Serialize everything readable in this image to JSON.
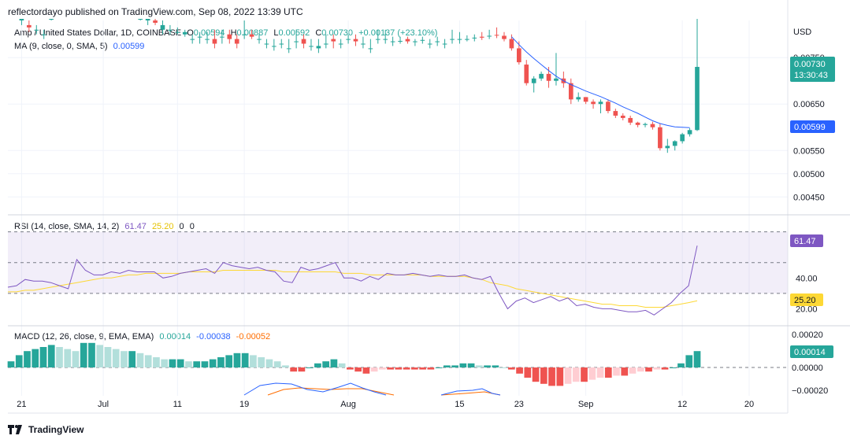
{
  "header": {
    "published_by": "reflectordayo published on TradingView.com, Sep 08, 2022 13:39 UTC"
  },
  "footer": {
    "brand": "TradingView"
  },
  "legend": {
    "symbol": "Amp / United States Dollar, 1D, COINBASE",
    "open_label": "O",
    "open": "0.00594",
    "high_label": "H",
    "high": "0.00887",
    "low_label": "L",
    "low": "0.00592",
    "close_label": "C",
    "close": "0.00730",
    "change": "+0.00137 (+23.10%)",
    "ma_label": "MA (9, close, 0, SMA, 5)",
    "ma_value": "0.00599",
    "rsi_label": "RSI (14, close, SMA, 14, 2)",
    "rsi_value": "61.47",
    "rsi_ma_value": "25.20",
    "rsi_extra1": "0",
    "rsi_extra2": "0",
    "macd_label": "MACD (12, 26, close, 9, EMA, EMA)",
    "macd_hist": "0.00014",
    "macd_line": "-0.00038",
    "macd_signal": "-0.00052"
  },
  "colors": {
    "up": "#26a69a",
    "down": "#ef5350",
    "ma": "#2962ff",
    "rsi": "#7e57c2",
    "rsi_ma": "#fdd835",
    "macd": "#2962ff",
    "signal": "#ff6d00",
    "hist_up": "#26a69a",
    "hist_up_light": "#b2dfdb",
    "hist_down": "#ef5350",
    "hist_down_light": "#ffcdd2"
  },
  "chart_data": [
    {
      "type": "candlestick",
      "currency": "USD",
      "y_ticks": [
        "0.00750",
        "0.00650",
        "0.00550",
        "0.00500",
        "0.00450"
      ],
      "price_badge": {
        "value": "0.00730",
        "countdown": "13:30:43"
      },
      "ma_badge": "0.00599",
      "x_ticks": [
        "21",
        "Jul",
        "11",
        "19",
        "Aug",
        "15",
        "23",
        "Sep",
        "12",
        "20"
      ],
      "candles": [
        [
          8.5,
          8.5,
          8.45,
          8.6
        ],
        [
          8.3,
          8.35,
          8.2,
          8.6
        ],
        [
          8.2,
          8.15,
          8.05,
          8.3
        ],
        [
          8.1,
          8.1,
          8.0,
          8.2
        ],
        [
          8.0,
          8.0,
          7.9,
          8.1
        ],
        [
          8.4,
          8.4,
          8.3,
          8.5
        ],
        [
          8.6,
          8.5,
          8.45,
          8.7
        ],
        [
          8.5,
          8.6,
          8.4,
          8.7
        ],
        [
          8.7,
          8.7,
          8.6,
          8.9
        ],
        [
          8.8,
          8.9,
          8.7,
          9.0
        ],
        [
          9.0,
          8.9,
          8.8,
          9.2
        ],
        [
          8.8,
          8.8,
          8.7,
          8.9
        ],
        [
          8.8,
          8.8,
          8.7,
          8.9
        ],
        [
          8.8,
          8.8,
          8.7,
          8.9
        ],
        [
          8.8,
          8.9,
          8.7,
          9.0
        ],
        [
          9.0,
          8.9,
          8.8,
          9.1
        ],
        [
          8.8,
          8.7,
          8.6,
          9.0
        ],
        [
          8.4,
          8.4,
          8.3,
          8.5
        ],
        [
          8.3,
          8.35,
          8.2,
          8.4
        ],
        [
          8.3,
          8.25,
          8.2,
          8.45
        ],
        [
          8.1,
          8.2,
          8.0,
          8.3
        ],
        [
          8.1,
          8.1,
          8.0,
          8.2
        ],
        [
          8.05,
          8.05,
          8.0,
          8.15
        ],
        [
          8.0,
          8.05,
          7.95,
          8.1
        ],
        [
          7.9,
          7.9,
          7.8,
          8.0
        ],
        [
          7.95,
          7.95,
          7.8,
          8.05
        ],
        [
          7.9,
          7.9,
          7.8,
          8.05
        ],
        [
          7.9,
          7.8,
          7.7,
          8.1
        ],
        [
          7.95,
          7.95,
          7.8,
          8.1
        ],
        [
          8.0,
          7.9,
          7.8,
          8.1
        ],
        [
          7.9,
          7.8,
          7.7,
          8.0
        ],
        [
          8.0,
          8.0,
          7.9,
          8.3
        ],
        [
          8.0,
          7.95,
          7.9,
          8.1
        ],
        [
          7.9,
          7.9,
          7.8,
          8.0
        ],
        [
          7.8,
          7.8,
          7.7,
          7.9
        ],
        [
          7.75,
          7.75,
          7.65,
          7.9
        ],
        [
          7.8,
          7.8,
          7.7,
          7.9
        ],
        [
          7.7,
          7.7,
          7.6,
          7.9
        ],
        [
          7.85,
          7.85,
          7.7,
          8.1
        ],
        [
          7.9,
          7.8,
          7.7,
          8.0
        ],
        [
          7.75,
          7.75,
          7.65,
          7.9
        ],
        [
          7.7,
          7.75,
          7.6,
          7.9
        ],
        [
          7.8,
          7.8,
          7.7,
          8.0
        ],
        [
          7.9,
          7.85,
          7.7,
          8.0
        ],
        [
          7.8,
          7.8,
          7.7,
          7.9
        ],
        [
          7.9,
          7.9,
          7.8,
          8.0
        ],
        [
          7.9,
          7.85,
          7.75,
          8.0
        ],
        [
          7.8,
          7.8,
          7.7,
          7.95
        ],
        [
          7.7,
          7.7,
          7.6,
          7.9
        ],
        [
          7.9,
          7.9,
          7.8,
          8.1
        ],
        [
          7.9,
          7.9,
          7.8,
          8.1
        ],
        [
          7.85,
          7.85,
          7.75,
          7.95
        ],
        [
          7.86,
          7.86,
          7.8,
          7.95
        ],
        [
          7.9,
          7.85,
          7.8,
          7.95
        ],
        [
          7.85,
          7.85,
          7.75,
          7.9
        ],
        [
          7.88,
          7.88,
          7.8,
          7.95
        ],
        [
          7.8,
          7.8,
          7.7,
          7.9
        ],
        [
          7.85,
          7.85,
          7.75,
          7.95
        ],
        [
          7.8,
          7.8,
          7.7,
          7.9
        ],
        [
          7.9,
          7.9,
          7.8,
          8.1
        ],
        [
          7.9,
          7.9,
          7.8,
          8.05
        ],
        [
          7.9,
          7.9,
          7.85,
          7.98
        ],
        [
          7.93,
          7.93,
          7.85,
          8.0
        ],
        [
          7.95,
          7.93,
          7.88,
          8.05
        ],
        [
          7.97,
          7.97,
          7.9,
          8.1
        ],
        [
          7.99,
          7.98,
          7.92,
          8.15
        ],
        [
          7.97,
          7.9,
          7.85,
          8.05
        ],
        [
          7.9,
          7.7,
          7.65,
          8.0
        ],
        [
          7.7,
          7.4,
          7.35,
          7.85
        ],
        [
          7.35,
          6.95,
          6.9,
          7.45
        ],
        [
          6.95,
          7.05,
          6.75,
          7.1
        ],
        [
          7.05,
          7.15,
          7.0,
          7.2
        ],
        [
          7.15,
          7.0,
          6.85,
          7.3
        ],
        [
          7.0,
          7.05,
          6.9,
          7.6
        ],
        [
          7.05,
          6.95,
          6.85,
          7.2
        ],
        [
          6.95,
          6.6,
          6.5,
          7.05
        ],
        [
          6.6,
          6.65,
          6.55,
          6.75
        ],
        [
          6.65,
          6.55,
          6.5,
          6.65
        ],
        [
          6.55,
          6.5,
          6.4,
          6.6
        ],
        [
          6.5,
          6.55,
          6.3,
          6.6
        ],
        [
          6.55,
          6.35,
          6.3,
          6.6
        ],
        [
          6.35,
          6.25,
          6.2,
          6.4
        ],
        [
          6.25,
          6.2,
          6.15,
          6.3
        ],
        [
          6.2,
          6.1,
          6.05,
          6.25
        ],
        [
          6.1,
          6.05,
          6.0,
          6.12
        ],
        [
          6.05,
          6.07,
          6.0,
          6.1
        ],
        [
          6.07,
          6.0,
          5.95,
          6.12
        ],
        [
          6.0,
          5.55,
          5.5,
          6.08
        ],
        [
          5.55,
          5.6,
          5.45,
          5.75
        ],
        [
          5.6,
          5.7,
          5.5,
          5.72
        ],
        [
          5.7,
          5.85,
          5.65,
          5.88
        ],
        [
          5.85,
          5.94,
          5.8,
          5.98
        ],
        [
          5.94,
          7.3,
          5.92,
          8.87
        ]
      ],
      "ma": [
        null,
        null,
        null,
        null,
        null,
        null,
        null,
        null,
        null,
        null,
        null,
        null,
        null,
        null,
        null,
        null,
        null,
        null,
        null,
        null,
        null,
        null,
        null,
        null,
        null,
        null,
        null,
        null,
        null,
        null,
        null,
        null,
        null,
        null,
        null,
        null,
        null,
        null,
        null,
        null,
        null,
        null,
        null,
        null,
        null,
        null,
        null,
        null,
        null,
        null,
        null,
        null,
        null,
        null,
        null,
        null,
        null,
        null,
        null,
        null,
        null,
        null,
        null,
        null,
        null,
        null,
        null,
        7.95,
        7.78,
        7.62,
        7.48,
        7.35,
        7.22,
        7.1,
        7.0,
        6.92,
        6.85,
        6.78,
        6.72,
        6.66,
        6.59,
        6.52,
        6.44,
        6.37,
        6.3,
        6.22,
        6.14,
        6.08,
        6.04,
        6.01,
        6.0,
        5.99
      ]
    },
    {
      "type": "line",
      "name": "RSI",
      "y_ticks": [
        "40.00",
        "20.00"
      ],
      "levels": [
        70,
        50,
        30
      ],
      "badge_rsi": "61.47",
      "badge_ma": "25.20",
      "rsi": [
        34,
        35,
        39,
        38,
        38,
        37,
        35,
        33,
        52,
        45,
        42,
        42,
        44,
        43,
        45,
        44,
        44,
        44,
        40,
        41,
        43,
        44,
        45,
        46,
        43,
        50,
        48,
        47,
        46,
        47,
        45,
        44,
        38,
        37,
        47,
        45,
        46,
        48,
        50,
        40,
        40,
        38,
        41,
        39,
        43,
        42,
        42,
        43,
        42,
        41,
        42,
        41,
        41,
        42,
        40,
        39,
        41,
        30,
        20,
        25,
        27,
        24,
        26,
        28,
        25,
        27,
        22,
        23,
        21,
        20,
        20,
        19,
        18,
        18,
        19,
        16,
        20,
        24,
        30,
        35,
        61
      ],
      "rsi_ma": [
        31,
        31,
        32,
        32,
        33,
        34,
        35,
        36,
        37,
        38,
        39,
        40,
        40,
        41,
        42,
        42,
        43,
        43,
        43,
        43,
        43,
        44,
        44,
        44,
        44,
        45,
        45,
        45,
        45,
        45,
        45,
        45,
        44,
        44,
        44,
        44,
        44,
        44,
        44,
        43,
        43,
        43,
        42,
        42,
        42,
        42,
        42,
        42,
        42,
        41,
        41,
        41,
        41,
        41,
        40,
        39,
        37,
        36,
        35,
        33,
        32,
        31,
        30,
        29,
        28,
        27,
        26,
        25,
        24,
        23,
        23,
        22,
        22,
        22,
        21,
        21,
        21,
        22,
        23,
        24,
        25.2
      ]
    },
    {
      "type": "bar",
      "name": "MACD",
      "y_ticks": [
        "0.00020",
        "0.00000",
        "−0.00020"
      ],
      "badge": "0.00014",
      "hist": [
        3,
        6,
        8,
        9,
        10,
        11,
        10,
        9,
        8,
        12,
        12,
        11,
        10,
        9,
        8,
        8,
        7,
        6,
        5,
        4,
        4,
        4,
        3,
        3,
        3,
        4,
        5,
        6,
        7,
        7,
        6,
        5,
        4,
        3,
        1,
        -2,
        -2,
        0,
        2,
        3,
        4,
        2,
        -1,
        -2,
        -3,
        -2,
        -1,
        -1,
        -1,
        -1,
        -1,
        -1,
        -1,
        0,
        1,
        1,
        2,
        2,
        1,
        1,
        1,
        0,
        -1,
        -3,
        -5,
        -7,
        -8,
        -9,
        -9,
        -8,
        -7,
        -7,
        -6,
        -5,
        -5,
        -4,
        -4,
        -3,
        -2,
        -2,
        -1,
        -1,
        0,
        2,
        6,
        8
      ],
      "macd": [
        null,
        null,
        null,
        null,
        null,
        null,
        null,
        null,
        null,
        null,
        null,
        null,
        null,
        null,
        null,
        null,
        null,
        null,
        null,
        null,
        null,
        null,
        null,
        null,
        null,
        null,
        null,
        null,
        null,
        null,
        null,
        null,
        null,
        null,
        null,
        null,
        null,
        null,
        null,
        null,
        null,
        null,
        null,
        null,
        null,
        null,
        null,
        null,
        null,
        null,
        null,
        null,
        null,
        null,
        null,
        null,
        null,
        null,
        null,
        null,
        null,
        null,
        null,
        null,
        null,
        null,
        null,
        null,
        null,
        null,
        null,
        null,
        null,
        null,
        null,
        null,
        null,
        null,
        null,
        null,
        null,
        null,
        null,
        null,
        null,
        null
      ]
    }
  ]
}
